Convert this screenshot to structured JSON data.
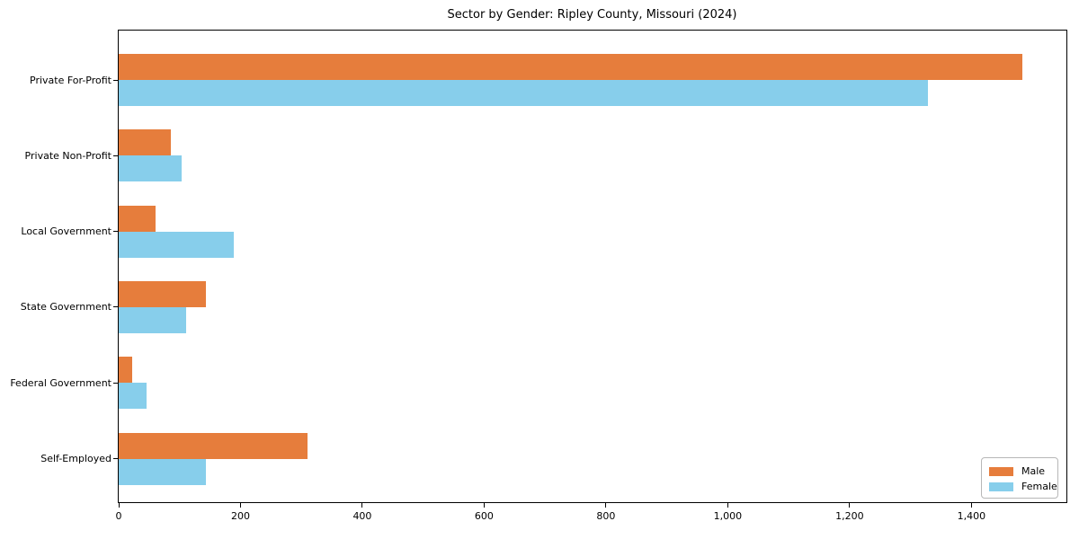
{
  "chart_data": {
    "type": "bar",
    "orientation": "horizontal",
    "title": "Sector by Gender: Ripley County, Missouri (2024)",
    "categories": [
      "Private For-Profit",
      "Private Non-Profit",
      "Local Government",
      "State Government",
      "Federal Government",
      "Self-Employed"
    ],
    "series": [
      {
        "name": "Male",
        "color": "#e67d3c",
        "values": [
          1483,
          85,
          60,
          143,
          22,
          310
        ]
      },
      {
        "name": "Female",
        "color": "#87ceeb",
        "values": [
          1328,
          104,
          189,
          111,
          46,
          143
        ]
      }
    ],
    "xlim": [
      0,
      1556
    ],
    "xticks": {
      "values": [
        0,
        200,
        400,
        600,
        800,
        1000,
        1200,
        1400
      ],
      "labels": [
        "0",
        "200",
        "400",
        "600",
        "800",
        "1,000",
        "1,200",
        "1,400"
      ]
    },
    "ylabel": "",
    "xlabel": "",
    "grid": false,
    "legend": {
      "position": "lower right",
      "entries": [
        "Male",
        "Female"
      ]
    },
    "colors": {
      "male": "#e67d3c",
      "female": "#87ceeb",
      "spine": "#000000",
      "background": "#ffffff"
    }
  }
}
